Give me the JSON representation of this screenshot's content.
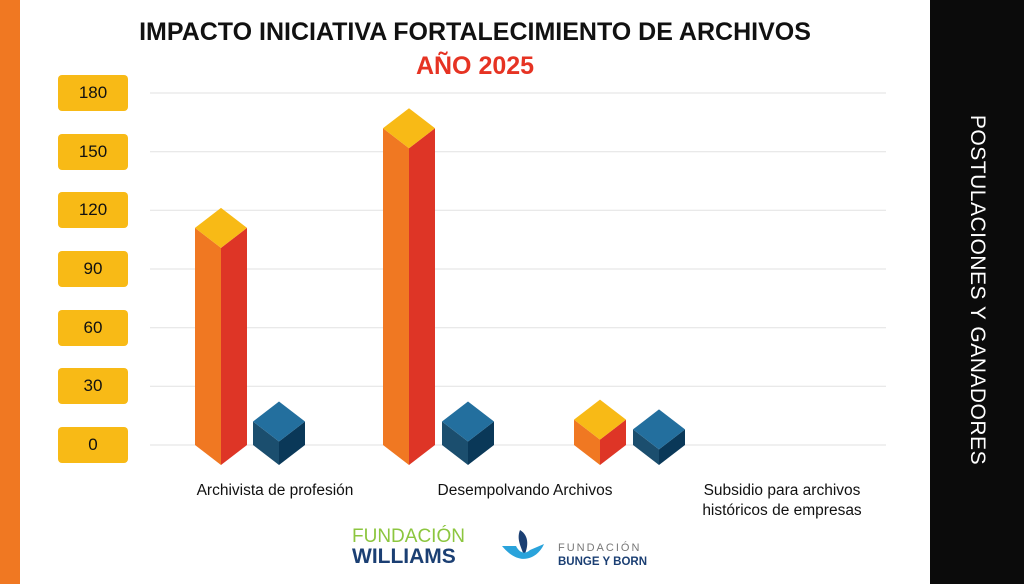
{
  "chart_data": {
    "type": "bar",
    "title": "IMPACTO INICIATIVA FORTALECIMIENTO DE ARCHIVOS",
    "subtitle": "AÑO 2025",
    "side_label": "POSTULACIONES Y GANADORES",
    "categories": [
      "Archivista de profesión",
      "Desempolvando Archivos",
      "Subsidio para archivos históricos de empresas"
    ],
    "series": [
      {
        "values": [
          111,
          162,
          13
        ],
        "colors": {
          "left": "#F07822",
          "right": "#DE3526",
          "top": "#F8BA16"
        }
      },
      {
        "values": [
          12,
          12,
          8
        ],
        "colors": {
          "left": "#1B4E6E",
          "right": "#0A3858",
          "top": "#236F9E"
        }
      }
    ],
    "yticks": [
      "180",
      "150",
      "120",
      "90",
      "60",
      "30",
      "0"
    ],
    "ylim": [
      0,
      180
    ],
    "grid": true
  },
  "logos": {
    "williams": {
      "line1": "FUNDACIÓN",
      "line2": "WILLIAMS"
    },
    "bunge": {
      "line1": "FUNDACIÓN",
      "line2": "BUNGE Y BORN"
    }
  }
}
